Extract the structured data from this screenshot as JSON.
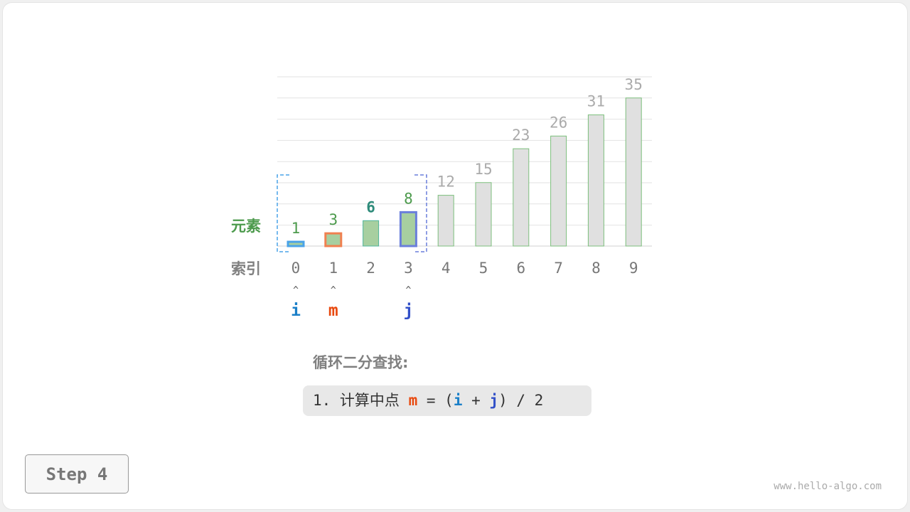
{
  "labels": {
    "elements": "元素",
    "index": "索引"
  },
  "array": [
    1,
    3,
    6,
    8,
    12,
    15,
    23,
    26,
    31,
    35
  ],
  "indices": [
    "0",
    "1",
    "2",
    "3",
    "4",
    "5",
    "6",
    "7",
    "8",
    "9"
  ],
  "pointers": [
    {
      "name": "i",
      "index": 0,
      "color": "#1a7fc8"
    },
    {
      "name": "m",
      "index": 1,
      "color": "#e8490f"
    },
    {
      "name": "j",
      "index": 3,
      "color": "#3250c8"
    }
  ],
  "highlight": {
    "i_border": "#4aa3e8",
    "m_border": "#f08050",
    "j_border": "#6a7fdb",
    "range_fill": "#a7cfa0",
    "other_fill": "#e0e0e0"
  },
  "title": "循环二分查找:",
  "code": {
    "prefix": "1. 计算中点 ",
    "m": "m",
    "eq": " = (",
    "i": "i",
    "plus": " + ",
    "j": "j",
    "suffix": ") / 2"
  },
  "step": "Step 4",
  "watermark": "www.hello-algo.com"
}
